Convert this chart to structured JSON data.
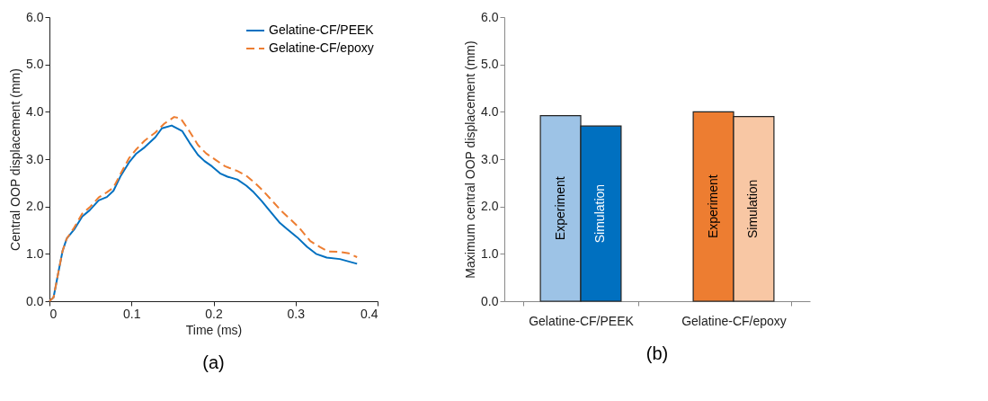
{
  "chart_data": [
    {
      "type": "line",
      "xlabel": "Time (ms)",
      "ylabel": "Central OOP displacement (mm)",
      "annotations": [
        "(a)"
      ],
      "legend": "top right",
      "grid": false,
      "xlim": [
        0,
        0.4
      ],
      "ylim": [
        0,
        6
      ],
      "xticks": [
        0,
        0.1,
        0.2,
        0.3,
        0.4
      ],
      "yticks": [
        {
          "value": 0,
          "label": "0.0"
        },
        {
          "value": 1,
          "label": "1.0"
        },
        {
          "value": 2,
          "label": "2.0"
        },
        {
          "value": 3,
          "label": "3.0"
        },
        {
          "value": 4,
          "label": "4.0"
        },
        {
          "value": 5,
          "label": "5.0"
        },
        {
          "value": 6,
          "label": "6.0"
        }
      ],
      "series": [
        {
          "name": "Gelatine-CF/PEEK",
          "color": "#0070c0",
          "line_style": "solid",
          "x": [
            0,
            0.005,
            0.011,
            0.016,
            0.021,
            0.03,
            0.04,
            0.049,
            0.06,
            0.07,
            0.078,
            0.087,
            0.097,
            0.106,
            0.116,
            0.129,
            0.137,
            0.149,
            0.162,
            0.171,
            0.181,
            0.189,
            0.198,
            0.208,
            0.217,
            0.229,
            0.24,
            0.249,
            0.259,
            0.268,
            0.281,
            0.29,
            0.302,
            0.314,
            0.325,
            0.338,
            0.354,
            0.375
          ],
          "values": [
            0,
            0.08,
            0.62,
            1.06,
            1.32,
            1.51,
            1.79,
            1.92,
            2.13,
            2.2,
            2.33,
            2.65,
            2.93,
            3.12,
            3.25,
            3.46,
            3.65,
            3.71,
            3.59,
            3.34,
            3.09,
            2.96,
            2.85,
            2.7,
            2.63,
            2.57,
            2.44,
            2.3,
            2.11,
            1.92,
            1.65,
            1.52,
            1.35,
            1.15,
            1.0,
            0.92,
            0.89,
            0.79
          ]
        },
        {
          "name": "Gelatine-CF/epoxy",
          "color": "#ed7d31",
          "line_style": "dashed",
          "x": [
            0,
            0.005,
            0.011,
            0.016,
            0.021,
            0.03,
            0.04,
            0.05,
            0.06,
            0.07,
            0.078,
            0.087,
            0.097,
            0.106,
            0.116,
            0.129,
            0.14,
            0.152,
            0.16,
            0.171,
            0.181,
            0.191,
            0.203,
            0.214,
            0.229,
            0.24,
            0.251,
            0.26,
            0.27,
            0.283,
            0.295,
            0.305,
            0.318,
            0.33,
            0.34,
            0.355,
            0.365,
            0.375
          ],
          "values": [
            0,
            0.08,
            0.62,
            1.06,
            1.32,
            1.55,
            1.85,
            2.0,
            2.19,
            2.3,
            2.4,
            2.7,
            3.02,
            3.21,
            3.39,
            3.56,
            3.75,
            3.89,
            3.86,
            3.58,
            3.3,
            3.12,
            2.98,
            2.85,
            2.75,
            2.65,
            2.49,
            2.34,
            2.15,
            1.9,
            1.71,
            1.54,
            1.27,
            1.14,
            1.05,
            1.04,
            1.01,
            0.93
          ]
        }
      ]
    },
    {
      "type": "bar",
      "ylabel": "Maximum central OOP displacement (mm)",
      "annotations": [
        "(b)"
      ],
      "legend": false,
      "grid": false,
      "ylim": [
        0,
        6
      ],
      "yticks": [
        {
          "value": 0,
          "label": "0.0"
        },
        {
          "value": 1,
          "label": "1.0"
        },
        {
          "value": 2,
          "label": "2.0"
        },
        {
          "value": 3,
          "label": "3.0"
        },
        {
          "value": 4,
          "label": "4.0"
        },
        {
          "value": 5,
          "label": "5.0"
        },
        {
          "value": 6,
          "label": "6.0"
        }
      ],
      "categories": [
        "Gelatine-CF/PEEK",
        "Gelatine-CF/epoxy"
      ],
      "series": [
        {
          "name": "Experiment",
          "colors": [
            "#9dc3e6",
            "#ed7d31"
          ],
          "values": [
            3.92,
            4.0
          ]
        },
        {
          "name": "Simulation",
          "colors": [
            "#0070c0",
            "#f8c7a4"
          ],
          "values": [
            3.7,
            3.9
          ]
        }
      ]
    }
  ]
}
